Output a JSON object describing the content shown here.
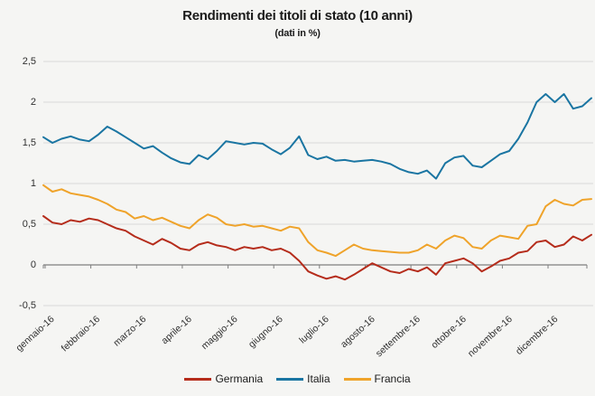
{
  "chart_data": {
    "type": "line",
    "title": "Rendimenti dei titoli di stato (10 anni)",
    "subtitle": "(dati in %)",
    "categories": [
      "gennaio-16",
      "febbraio-16",
      "marzo-16",
      "aprile-16",
      "maggio-16",
      "giugno-16",
      "luglio-16",
      "agosto-16",
      "settembre-16",
      "ottobre-16",
      "novembre-16",
      "dicembre-16"
    ],
    "y_tick_labels": [
      "2,5",
      "2",
      "1,5",
      "1",
      "0,5",
      "0",
      "-0,5"
    ],
    "y_ticks": [
      2.5,
      2,
      1.5,
      1,
      0.5,
      0,
      -0.5
    ],
    "ylim": [
      -0.5,
      2.5
    ],
    "grid": true,
    "legend_position": "bottom",
    "points_per_month": 5,
    "series": [
      {
        "name": "Germania",
        "color": "#b52c1b",
        "values": [
          0.6,
          0.52,
          0.5,
          0.55,
          0.53,
          0.57,
          0.55,
          0.5,
          0.45,
          0.42,
          0.35,
          0.3,
          0.25,
          0.32,
          0.27,
          0.2,
          0.18,
          0.25,
          0.28,
          0.24,
          0.22,
          0.18,
          0.22,
          0.2,
          0.22,
          0.18,
          0.2,
          0.15,
          0.05,
          -0.08,
          -0.13,
          -0.17,
          -0.14,
          -0.18,
          -0.12,
          -0.05,
          0.02,
          -0.03,
          -0.08,
          -0.1,
          -0.05,
          -0.08,
          -0.03,
          -0.12,
          0.02,
          0.05,
          0.08,
          0.02,
          -0.08,
          -0.02,
          0.05,
          0.08,
          0.15,
          0.17,
          0.28,
          0.3,
          0.22,
          0.25,
          0.35,
          0.3,
          0.37
        ]
      },
      {
        "name": "Italia",
        "color": "#1a75a2",
        "values": [
          1.57,
          1.5,
          1.55,
          1.58,
          1.54,
          1.52,
          1.6,
          1.7,
          1.64,
          1.57,
          1.5,
          1.43,
          1.46,
          1.38,
          1.31,
          1.26,
          1.24,
          1.35,
          1.3,
          1.4,
          1.52,
          1.5,
          1.48,
          1.5,
          1.49,
          1.42,
          1.36,
          1.44,
          1.58,
          1.35,
          1.3,
          1.33,
          1.28,
          1.29,
          1.27,
          1.28,
          1.29,
          1.27,
          1.24,
          1.18,
          1.14,
          1.12,
          1.16,
          1.06,
          1.25,
          1.32,
          1.34,
          1.22,
          1.2,
          1.28,
          1.36,
          1.4,
          1.55,
          1.75,
          2.0,
          2.1,
          2.0,
          2.1,
          1.92,
          1.95,
          2.05
        ]
      },
      {
        "name": "Francia",
        "color": "#efa32a",
        "values": [
          0.98,
          0.9,
          0.93,
          0.88,
          0.86,
          0.84,
          0.8,
          0.75,
          0.68,
          0.65,
          0.57,
          0.6,
          0.55,
          0.58,
          0.53,
          0.48,
          0.45,
          0.55,
          0.62,
          0.58,
          0.5,
          0.48,
          0.5,
          0.47,
          0.48,
          0.45,
          0.42,
          0.47,
          0.45,
          0.28,
          0.18,
          0.15,
          0.11,
          0.18,
          0.25,
          0.2,
          0.18,
          0.17,
          0.16,
          0.15,
          0.15,
          0.18,
          0.25,
          0.2,
          0.3,
          0.36,
          0.33,
          0.22,
          0.2,
          0.3,
          0.36,
          0.34,
          0.32,
          0.48,
          0.5,
          0.72,
          0.8,
          0.75,
          0.73,
          0.8,
          0.81
        ]
      }
    ]
  },
  "colors": {
    "background": "#f5f5f3",
    "gridline": "#d9d9d9",
    "axis": "#7f7f7f",
    "title_text": "#1a1a1a",
    "tick_text": "#303030"
  }
}
